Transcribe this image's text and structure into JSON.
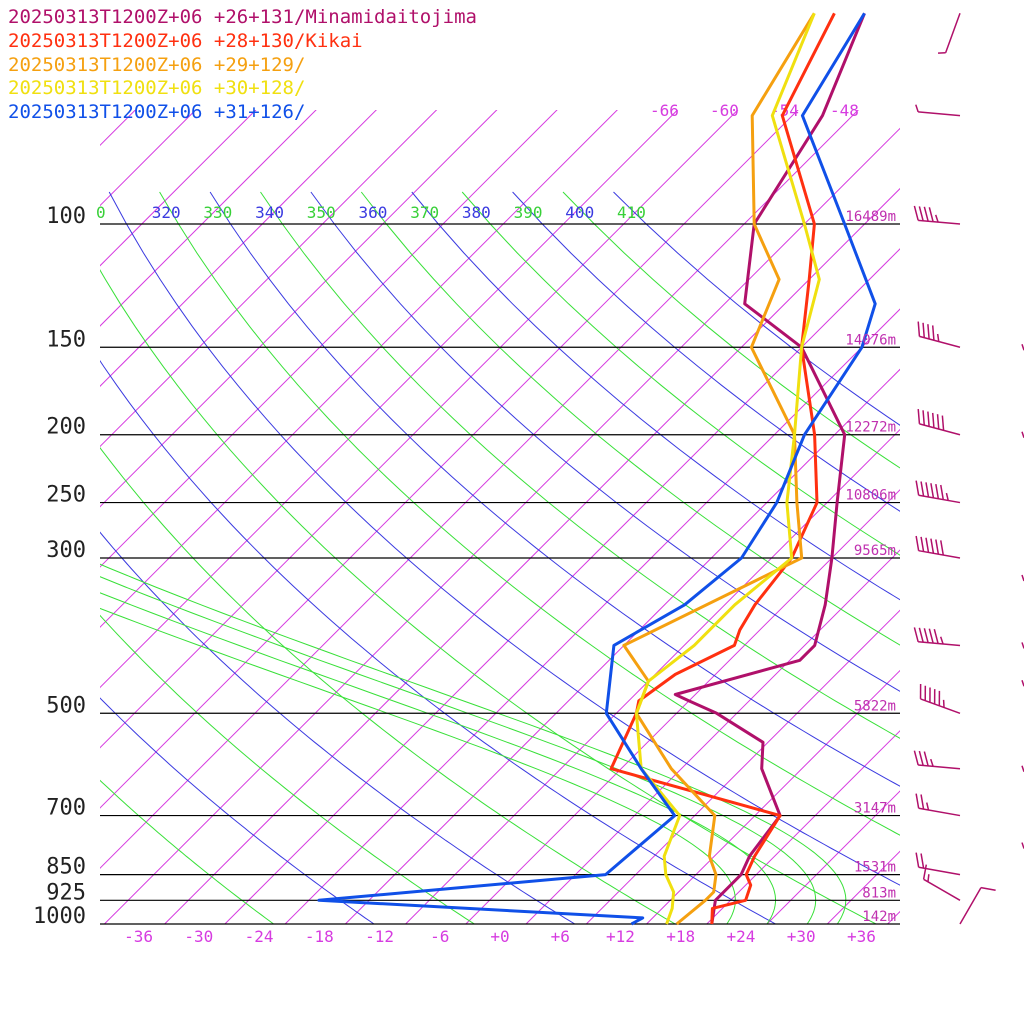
{
  "chart_data": {
    "type": "line",
    "chart_kind": "skew-T log-P sounding",
    "legend": [
      {
        "label": "20250313T1200Z+06 +26+131/Minamidaitojima",
        "color": "#b0106a"
      },
      {
        "label": "20250313T1200Z+06 +28+130/Kikai",
        "color": "#ff3010"
      },
      {
        "label": "20250313T1200Z+06 +29+129/",
        "color": "#f5a010"
      },
      {
        "label": "20250313T1200Z+06 +30+128/",
        "color": "#f0e010"
      },
      {
        "label": "20250313T1200Z+06 +31+126/",
        "color": "#1050e8"
      }
    ],
    "legend_position": "top-left",
    "pressure_levels": [
      {
        "p": 100,
        "label": "100",
        "height": "16489m"
      },
      {
        "p": 150,
        "label": "150",
        "height": "14076m"
      },
      {
        "p": 200,
        "label": "200",
        "height": "12272m"
      },
      {
        "p": 250,
        "label": "250",
        "height": "10806m"
      },
      {
        "p": 300,
        "label": "300",
        "height": "9565m"
      },
      {
        "p": 500,
        "label": "500",
        "height": "5822m"
      },
      {
        "p": 700,
        "label": "700",
        "height": "3147m"
      },
      {
        "p": 850,
        "label": "850",
        "height": "1531m"
      },
      {
        "p": 925,
        "label": "925",
        "height": "813m"
      },
      {
        "p": 1000,
        "label": "1000",
        "height": "142m"
      }
    ],
    "x_ticks": [
      "-36",
      "-30",
      "-24",
      "-18",
      "-12",
      "-6",
      "+0",
      "+6",
      "+12",
      "+18",
      "+24",
      "+30",
      "+36"
    ],
    "x_tick_values": [
      -36,
      -30,
      -24,
      -18,
      -12,
      -6,
      0,
      6,
      12,
      18,
      24,
      30,
      36
    ],
    "x_range_at_1000hPa": [
      -41,
      39
    ],
    "p_range": [
      100,
      1000
    ],
    "top_isotherm_labels": [
      "-66",
      "-60",
      "-54",
      "-48"
    ],
    "theta_labels": [
      {
        "text": "0",
        "color": "green"
      },
      {
        "text": "320",
        "color": "blue"
      },
      {
        "text": "330",
        "color": "green"
      },
      {
        "text": "340",
        "color": "blue"
      },
      {
        "text": "350",
        "color": "green"
      },
      {
        "text": "360",
        "color": "blue"
      },
      {
        "text": "370",
        "color": "green"
      },
      {
        "text": "380",
        "color": "blue"
      },
      {
        "text": "390",
        "color": "green"
      },
      {
        "text": "400",
        "color": "blue"
      },
      {
        "text": "410",
        "color": "green"
      }
    ],
    "series": [
      {
        "name": "20250313T1200Z+06 +26+131/Minamidaitojima",
        "color": "#b0106a",
        "points": [
          [
            1000,
            20.5
          ],
          [
            925,
            18.5
          ],
          [
            850,
            18.5
          ],
          [
            800,
            17.5
          ],
          [
            700,
            16.5
          ],
          [
            600,
            10
          ],
          [
            550,
            7.5
          ],
          [
            500,
            0
          ],
          [
            480,
            -4
          ],
          [
            470,
            -6
          ],
          [
            420,
            3
          ],
          [
            400,
            3
          ],
          [
            350,
            0
          ],
          [
            300,
            -4
          ],
          [
            250,
            -9
          ],
          [
            200,
            -15
          ],
          [
            150,
            -28
          ],
          [
            130,
            -38
          ],
          [
            100,
            -45
          ],
          [
            70,
            -49
          ],
          [
            50,
            -55
          ]
        ]
      },
      {
        "name": "20250313T1200Z+06 +28+130/Kikai",
        "color": "#ff3010",
        "points": [
          [
            1000,
            20.5
          ],
          [
            950,
            19
          ],
          [
            925,
            21.5
          ],
          [
            880,
            20.5
          ],
          [
            850,
            19
          ],
          [
            800,
            18
          ],
          [
            700,
            16.5
          ],
          [
            600,
            -5
          ],
          [
            500,
            -8
          ],
          [
            480,
            -9
          ],
          [
            440,
            -8
          ],
          [
            400,
            -5
          ],
          [
            380,
            -6
          ],
          [
            350,
            -7
          ],
          [
            300,
            -8
          ],
          [
            250,
            -11
          ],
          [
            200,
            -18
          ],
          [
            150,
            -28
          ],
          [
            120,
            -34
          ],
          [
            100,
            -39
          ],
          [
            70,
            -53
          ],
          [
            50,
            -58
          ]
        ]
      },
      {
        "name": "20250313T1200Z+06 +29+129/",
        "color": "#f5a010",
        "points": [
          [
            1000,
            17
          ],
          [
            925,
            17.5
          ],
          [
            900,
            17.5
          ],
          [
            850,
            16
          ],
          [
            800,
            13.5
          ],
          [
            700,
            10
          ],
          [
            600,
            1
          ],
          [
            500,
            -8
          ],
          [
            450,
            -10
          ],
          [
            400,
            -16
          ],
          [
            300,
            -7
          ],
          [
            250,
            -13
          ],
          [
            200,
            -20
          ],
          [
            150,
            -33
          ],
          [
            120,
            -37
          ],
          [
            100,
            -45
          ],
          [
            70,
            -56
          ],
          [
            50,
            -60
          ]
        ]
      },
      {
        "name": "20250313T1200Z+06 +30+128/",
        "color": "#f0e010",
        "points": [
          [
            1000,
            16
          ],
          [
            950,
            15
          ],
          [
            900,
            13.5
          ],
          [
            850,
            11
          ],
          [
            800,
            9
          ],
          [
            700,
            6.5
          ],
          [
            600,
            -2
          ],
          [
            500,
            -8
          ],
          [
            450,
            -10
          ],
          [
            400,
            -9
          ],
          [
            350,
            -9
          ],
          [
            300,
            -8
          ],
          [
            250,
            -14
          ],
          [
            200,
            -20
          ],
          [
            150,
            -28
          ],
          [
            120,
            -33
          ],
          [
            100,
            -40
          ],
          [
            70,
            -54
          ],
          [
            50,
            -60
          ]
        ]
      },
      {
        "name": "20250313T1200Z+06 +31+126/",
        "color": "#1050e8",
        "points": [
          [
            1000,
            12.5
          ],
          [
            980,
            13
          ],
          [
            925,
            -21
          ],
          [
            850,
            5
          ],
          [
            700,
            6
          ],
          [
            600,
            -2
          ],
          [
            500,
            -11
          ],
          [
            400,
            -17
          ],
          [
            350,
            -14
          ],
          [
            300,
            -13
          ],
          [
            250,
            -15
          ],
          [
            200,
            -19
          ],
          [
            150,
            -22
          ],
          [
            130,
            -25
          ],
          [
            100,
            -36
          ],
          [
            70,
            -51
          ],
          [
            50,
            -55
          ]
        ]
      }
    ],
    "wind_barbs": [
      {
        "p": 1000,
        "speed_kt": 10,
        "dir_deg": 30
      },
      {
        "p": 925,
        "speed_kt": 15,
        "dir_deg": 300
      },
      {
        "p": 850,
        "speed_kt": 20,
        "dir_deg": 280
      },
      {
        "p": 700,
        "speed_kt": 25,
        "dir_deg": 280
      },
      {
        "p": 600,
        "speed_kt": 35,
        "dir_deg": 275
      },
      {
        "p": 500,
        "speed_kt": 55,
        "dir_deg": 290
      },
      {
        "p": 400,
        "speed_kt": 55,
        "dir_deg": 275
      },
      {
        "p": 300,
        "speed_kt": 60,
        "dir_deg": 280
      },
      {
        "p": 250,
        "speed_kt": 65,
        "dir_deg": 280
      },
      {
        "p": 200,
        "speed_kt": 60,
        "dir_deg": 285
      },
      {
        "p": 150,
        "speed_kt": 45,
        "dir_deg": 285
      },
      {
        "p": 100,
        "speed_kt": 45,
        "dir_deg": 275
      },
      {
        "p": 70,
        "speed_kt": 5,
        "dir_deg": 275
      },
      {
        "p": 50,
        "speed_kt": 5,
        "dir_deg": 200
      }
    ],
    "grid": true
  }
}
